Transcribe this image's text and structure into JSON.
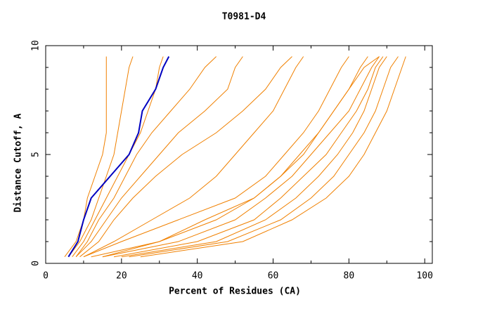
{
  "chart_data": {
    "type": "line",
    "title": "T0981-D4",
    "x_label": "Percent of Residues (CA)",
    "y_label": "Distance Cutoff, A",
    "xlim": [
      0,
      102
    ],
    "ylim": [
      0,
      10
    ],
    "xticks": [
      0,
      20,
      40,
      60,
      80,
      100
    ],
    "yticks": [
      0,
      5,
      10
    ],
    "xminor_ticks": [
      10,
      30,
      50,
      70,
      90
    ],
    "yminor_ticks": [
      1,
      2,
      3,
      4,
      6,
      7,
      8,
      9
    ],
    "y": [
      0.3,
      1,
      2,
      3,
      4,
      5,
      6,
      7,
      8,
      9,
      9.5
    ],
    "series": [
      {
        "color": "#f08000",
        "x": [
          5,
          8,
          10,
          11,
          13,
          15,
          16,
          16,
          16,
          16,
          16
        ]
      },
      {
        "color": "#f08000",
        "x": [
          6,
          9,
          12,
          14,
          16,
          18,
          19,
          20,
          21,
          22,
          23
        ]
      },
      {
        "color": "#f08000",
        "x": [
          7,
          10,
          13,
          16,
          19,
          22,
          25,
          27,
          29,
          30,
          31
        ]
      },
      {
        "color": "#f08000",
        "x": [
          8,
          11,
          14,
          18,
          21,
          24,
          28,
          33,
          38,
          42,
          45
        ]
      },
      {
        "color": "#f08000",
        "x": [
          8,
          12,
          16,
          20,
          25,
          30,
          35,
          42,
          48,
          50,
          52
        ]
      },
      {
        "color": "#f08000",
        "x": [
          9,
          14,
          18,
          23,
          29,
          36,
          45,
          52,
          58,
          62,
          65
        ]
      },
      {
        "color": "#f08000",
        "x": [
          10,
          18,
          28,
          38,
          45,
          50,
          55,
          60,
          63,
          66,
          68
        ]
      },
      {
        "color": "#f08000",
        "x": [
          10,
          20,
          35,
          50,
          58,
          63,
          68,
          72,
          75,
          78,
          80
        ]
      },
      {
        "color": "#f08000",
        "x": [
          12,
          30,
          45,
          55,
          62,
          67,
          72,
          76,
          80,
          83,
          85
        ]
      },
      {
        "color": "#f08000",
        "x": [
          15,
          30,
          42,
          55,
          62,
          68,
          72,
          76,
          80,
          84,
          88
        ]
      },
      {
        "color": "#f08000",
        "x": [
          15,
          35,
          50,
          58,
          65,
          70,
          75,
          80,
          83,
          86,
          88
        ]
      },
      {
        "color": "#f08000",
        "x": [
          18,
          40,
          55,
          62,
          68,
          74,
          78,
          82,
          85,
          87,
          89
        ]
      },
      {
        "color": "#f08000",
        "x": [
          20,
          45,
          58,
          66,
          72,
          77,
          81,
          84,
          86,
          88,
          90
        ]
      },
      {
        "color": "#f08000",
        "x": [
          22,
          48,
          62,
          70,
          76,
          80,
          84,
          87,
          89,
          91,
          93
        ]
      },
      {
        "color": "#f08000",
        "x": [
          25,
          52,
          65,
          74,
          80,
          84,
          87,
          90,
          92,
          94,
          95
        ]
      },
      {
        "color": "#0000c0",
        "x": [
          6,
          8.5,
          10,
          12,
          17,
          22,
          24.5,
          25.5,
          29,
          31,
          32.5
        ]
      }
    ]
  }
}
